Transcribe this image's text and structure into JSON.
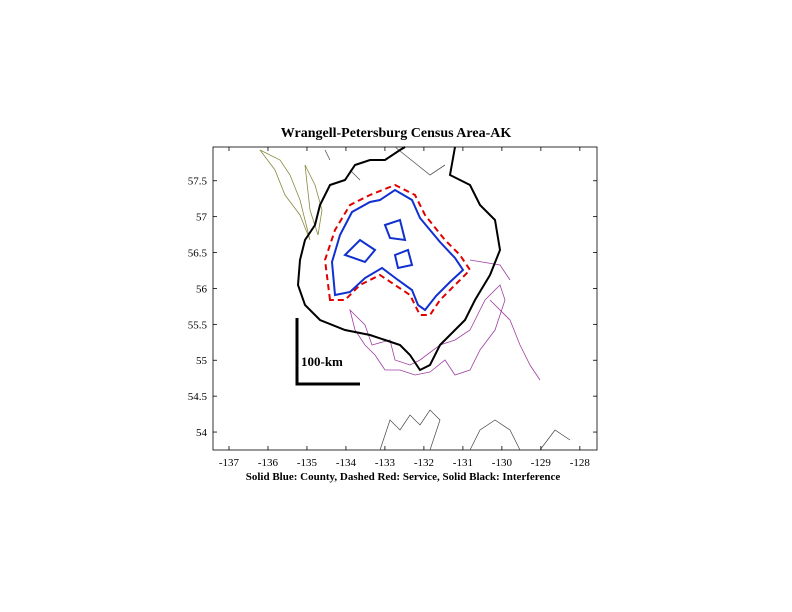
{
  "plot": {
    "title": "Wrangell-Petersburg Census Area-AK",
    "xlabel": "Solid Blue: County, Dashed Red: Service, Solid Black: Interference",
    "xlim": [
      -137.41,
      -127.56
    ],
    "ylim": [
      53.75,
      57.97
    ],
    "xticks": [
      -137,
      -136,
      -135,
      -134,
      -133,
      -132,
      -131,
      -130,
      -129,
      -128
    ],
    "yticks": [
      54,
      54.5,
      55,
      55.5,
      56,
      56.5,
      57,
      57.5
    ],
    "scale_label": "100-km"
  }
}
